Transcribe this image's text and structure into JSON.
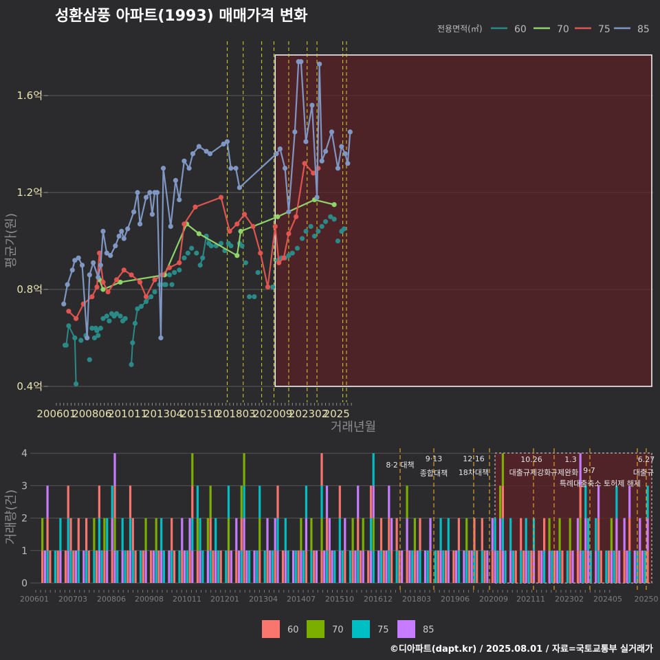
{
  "title": "성환삼풍 아파트(1993) 매매가격 변화",
  "footer": "©디아파트(dapt.kr) / 2025.08.01 / 자료=국토교통부 실거래가",
  "colors": {
    "s60": "#2a8a88",
    "s70": "#8fd36a",
    "s75": "#e0554f",
    "s85": "#7f97c2",
    "b60": "#f8766d",
    "b70": "#7cae00",
    "b75": "#00bfc4",
    "b85": "#c77cff"
  },
  "chart_data": [
    {
      "type": "line",
      "title": "성환삼풍 아파트(1993) 매매가격 변화",
      "xlabel": "거래년월",
      "ylabel": "평균가(원)",
      "legend": {
        "title": "전용면적(㎡)",
        "placement": "top-right",
        "entries": [
          "60",
          "70",
          "75",
          "85"
        ]
      },
      "x_ticks": [
        "200601",
        "200806",
        "201011",
        "201304",
        "201510",
        "201803",
        "202009",
        "202302",
        "2025"
      ],
      "y_ticks": [
        {
          "v": 0.4,
          "label": "0.4억"
        },
        {
          "v": 0.8,
          "label": "0.8억"
        },
        {
          "v": 1.2,
          "label": "1.2억"
        },
        {
          "v": 1.6,
          "label": "1.6억"
        }
      ],
      "ylim": [
        0.35,
        1.78
      ],
      "units": "억",
      "series": [
        {
          "name": "60",
          "points": [
            [
              "2006-08",
              0.57
            ],
            [
              "2006-09",
              0.57
            ],
            [
              "2006-11",
              0.65
            ],
            [
              "2007-04",
              0.6
            ],
            [
              "2007-05",
              0.41
            ],
            [
              "2007-09",
              0.59
            ],
            [
              "2008-01",
              0.61
            ],
            [
              "2008-02",
              0.6
            ],
            [
              "2008-04",
              0.51
            ],
            [
              "2008-06",
              0.64
            ],
            [
              "2008-08",
              0.6
            ],
            [
              "2008-09",
              0.64
            ],
            [
              "2008-10",
              0.63
            ],
            [
              "2008-11",
              0.61
            ],
            [
              "2009-01",
              0.64
            ],
            [
              "2009-03",
              0.68
            ],
            [
              "2009-06",
              0.69
            ],
            [
              "2009-08",
              0.67
            ],
            [
              "2009-10",
              0.7
            ],
            [
              "2009-12",
              0.69
            ],
            [
              "2010-02",
              0.7
            ],
            [
              "2010-05",
              0.69
            ],
            [
              "2010-07",
              0.67
            ],
            [
              "2010-09",
              0.68
            ],
            [
              "2011-02",
              0.49
            ],
            [
              "2011-03",
              0.58
            ],
            [
              "2011-05",
              0.66
            ],
            [
              "2011-07",
              0.72
            ],
            [
              "2011-10",
              0.73
            ],
            [
              "2012-02",
              0.75
            ],
            [
              "2012-06",
              0.77
            ],
            [
              "2012-09",
              0.79
            ],
            [
              "2013-01",
              0.82
            ],
            [
              "2013-05",
              0.82
            ],
            [
              "2013-06",
              0.82
            ],
            [
              "2013-09",
              0.86
            ],
            [
              "2013-11",
              0.82
            ],
            [
              "2014-01",
              0.87
            ],
            [
              "2014-05",
              0.88
            ],
            [
              "2014-09",
              0.93
            ],
            [
              "2014-12",
              0.95
            ],
            [
              "2015-03",
              0.97
            ],
            [
              "2015-07",
              0.95
            ],
            [
              "2015-10",
              0.9
            ],
            [
              "2015-12",
              0.93
            ],
            [
              "2016-03",
              1.02
            ],
            [
              "2016-05",
              0.99
            ],
            [
              "2016-07",
              0.98
            ],
            [
              "2016-11",
              0.98
            ],
            [
              "2017-03",
              0.99
            ],
            [
              "2017-06",
              0.96
            ],
            [
              "2017-09",
              0.99
            ],
            [
              "2017-11",
              0.98
            ],
            [
              "2018-06",
              0.99
            ],
            [
              "2018-08",
              0.98
            ],
            [
              "2018-11",
              0.91
            ],
            [
              "2019-02",
              0.77
            ],
            [
              "2019-06",
              0.77
            ],
            [
              "2019-09",
              0.87
            ],
            [
              "2020-05",
              0.81
            ],
            [
              "2020-09",
              0.81
            ],
            [
              "2021-01",
              0.92
            ],
            [
              "2021-04",
              0.93
            ],
            [
              "2021-07",
              0.93
            ],
            [
              "2021-10",
              0.94
            ],
            [
              "2022-01",
              0.95
            ],
            [
              "2022-05",
              0.97
            ],
            [
              "2022-09",
              1.01
            ],
            [
              "2022-12",
              1.04
            ],
            [
              "2023-04",
              1.06
            ],
            [
              "2023-07",
              1.02
            ],
            [
              "2023-10",
              1.04
            ],
            [
              "2024-01",
              1.06
            ],
            [
              "2024-04",
              1.08
            ],
            [
              "2024-08",
              1.1
            ],
            [
              "2024-11",
              1.09
            ],
            [
              "2025-02",
              1.0
            ],
            [
              "2025-05",
              1.04
            ],
            [
              "2025-07",
              1.05
            ]
          ]
        },
        {
          "name": "70",
          "points": [
            [
              "2008-12",
              0.84
            ],
            [
              "2009-03",
              0.8
            ],
            [
              "2010-05",
              0.83
            ],
            [
              "2013-05",
              0.86
            ],
            [
              "2014-11",
              1.07
            ],
            [
              "2015-09",
              1.03
            ],
            [
              "2018-04",
              0.94
            ],
            [
              "2018-07",
              1.04
            ],
            [
              "2021-01",
              1.1
            ],
            [
              "2023-07",
              1.17
            ],
            [
              "2024-11",
              1.15
            ]
          ]
        },
        {
          "name": "75",
          "points": [
            [
              "2006-11",
              0.71
            ],
            [
              "2007-05",
              0.68
            ],
            [
              "2007-11",
              0.74
            ],
            [
              "2008-06",
              0.77
            ],
            [
              "2008-10",
              0.81
            ],
            [
              "2008-12",
              0.95
            ],
            [
              "2009-03",
              0.83
            ],
            [
              "2009-07",
              0.79
            ],
            [
              "2010-02",
              0.84
            ],
            [
              "2010-08",
              0.88
            ],
            [
              "2011-02",
              0.86
            ],
            [
              "2011-09",
              0.83
            ],
            [
              "2012-02",
              0.77
            ],
            [
              "2012-09",
              0.84
            ],
            [
              "2013-03",
              0.86
            ],
            [
              "2013-09",
              0.89
            ],
            [
              "2014-05",
              0.91
            ],
            [
              "2014-09",
              1.07
            ],
            [
              "2015-06",
              1.14
            ],
            [
              "2017-03",
              1.18
            ],
            [
              "2017-10",
              1.04
            ],
            [
              "2018-04",
              1.07
            ],
            [
              "2018-10",
              1.11
            ],
            [
              "2019-05",
              1.06
            ],
            [
              "2019-11",
              0.95
            ],
            [
              "2020-05",
              0.81
            ],
            [
              "2020-11",
              1.06
            ],
            [
              "2021-02",
              0.91
            ],
            [
              "2021-06",
              0.93
            ],
            [
              "2021-10",
              1.03
            ],
            [
              "2022-04",
              1.1
            ],
            [
              "2022-11",
              1.32
            ],
            [
              "2023-06",
              1.28
            ],
            [
              "2023-10",
              1.3
            ]
          ]
        },
        {
          "name": "85",
          "points": [
            [
              "2006-07",
              0.74
            ],
            [
              "2006-10",
              0.82
            ],
            [
              "2007-02",
              0.88
            ],
            [
              "2007-04",
              0.92
            ],
            [
              "2007-07",
              0.93
            ],
            [
              "2007-10",
              0.9
            ],
            [
              "2008-02",
              0.6
            ],
            [
              "2008-04",
              0.86
            ],
            [
              "2008-07",
              0.91
            ],
            [
              "2008-11",
              0.85
            ],
            [
              "2009-01",
              0.9
            ],
            [
              "2009-03",
              1.04
            ],
            [
              "2009-06",
              0.95
            ],
            [
              "2009-09",
              0.94
            ],
            [
              "2010-01",
              0.98
            ],
            [
              "2010-04",
              1.02
            ],
            [
              "2010-06",
              1.04
            ],
            [
              "2010-08",
              1.01
            ],
            [
              "2010-11",
              1.05
            ],
            [
              "2011-04",
              1.12
            ],
            [
              "2011-07",
              1.2
            ],
            [
              "2011-09",
              1.07
            ],
            [
              "2012-02",
              1.18
            ],
            [
              "2012-05",
              1.2
            ],
            [
              "2012-07",
              1.11
            ],
            [
              "2012-09",
              1.2
            ],
            [
              "2012-11",
              1.2
            ],
            [
              "2013-02",
              0.6
            ],
            [
              "2013-04",
              1.3
            ],
            [
              "2013-10",
              1.06
            ],
            [
              "2014-02",
              1.25
            ],
            [
              "2014-05",
              1.17
            ],
            [
              "2014-09",
              1.33
            ],
            [
              "2015-01",
              1.3
            ],
            [
              "2015-04",
              1.36
            ],
            [
              "2015-09",
              1.39
            ],
            [
              "2016-03",
              1.37
            ],
            [
              "2016-06",
              1.36
            ],
            [
              "2017-05",
              1.4
            ],
            [
              "2017-08",
              1.41
            ],
            [
              "2017-11",
              1.3
            ],
            [
              "2018-03",
              1.3
            ],
            [
              "2018-06",
              1.22
            ],
            [
              "2020-12",
              1.36
            ],
            [
              "2021-03",
              1.38
            ],
            [
              "2021-07",
              1.3
            ],
            [
              "2021-10",
              1.12
            ],
            [
              "2022-03",
              1.45
            ],
            [
              "2022-06",
              1.74
            ],
            [
              "2022-08",
              1.74
            ],
            [
              "2022-12",
              1.41
            ],
            [
              "2023-05",
              1.56
            ],
            [
              "2023-09",
              1.18
            ],
            [
              "2023-11",
              1.73
            ],
            [
              "2024-01",
              1.33
            ],
            [
              "2024-04",
              1.37
            ],
            [
              "2024-09",
              1.45
            ],
            [
              "2025-02",
              1.3
            ],
            [
              "2025-05",
              1.39
            ],
            [
              "2025-08",
              1.36
            ],
            [
              "2025-10",
              1.32
            ],
            [
              "2025-12",
              1.45
            ]
          ]
        }
      ]
    },
    {
      "type": "bar",
      "xlabel": "",
      "ylabel": "거래량(건)",
      "stacked": true,
      "legend": {
        "placement": "bottom",
        "entries": [
          "60",
          "70",
          "75",
          "85"
        ]
      },
      "x_ticks": [
        "200601",
        "200703",
        "200806",
        "200908",
        "201011",
        "201201",
        "201304",
        "201407",
        "201510",
        "201612",
        "201803",
        "201906",
        "202009",
        "202111",
        "202302",
        "202405",
        "20250"
      ],
      "y_ticks": [
        0,
        1,
        2,
        3,
        4
      ],
      "ylim": [
        0,
        4
      ],
      "bars_note": "monthly transaction counts by area",
      "annotations": [
        "8·2 대책",
        "9·13",
        "종합대책",
        "12·16",
        "18차대책",
        "10.26",
        "대출규제강화",
        "1.3",
        "규제완화",
        "9·7",
        "특례대출축소 토허제 해제",
        "6.27",
        "대출규"
      ]
    }
  ]
}
